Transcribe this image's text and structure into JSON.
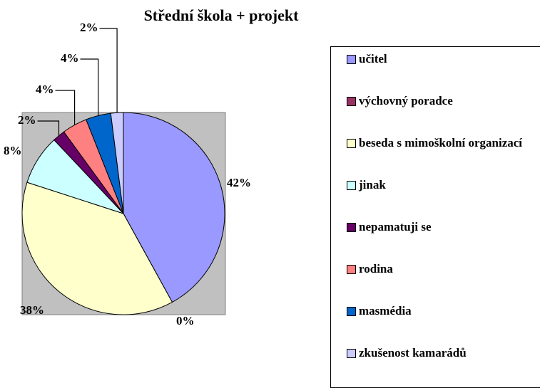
{
  "chart_data": {
    "type": "pie",
    "title": "Střední škola + projekt",
    "categories": [
      "učitel",
      "výchovný poradce",
      "beseda s mimoškolní organizací",
      "jinak",
      "nepamatuji se",
      "rodina",
      "masmédia",
      "zkušenost kamarádů"
    ],
    "values": [
      42,
      0,
      38,
      8,
      2,
      4,
      4,
      2
    ],
    "value_labels": [
      "42%",
      "0%",
      "38%",
      "8%",
      "2%",
      "4%",
      "4%",
      "2%"
    ],
    "colors": [
      "#9999ff",
      "#993366",
      "#ffffcc",
      "#ccffff",
      "#660066",
      "#ff8080",
      "#0066cc",
      "#ccccff"
    ],
    "legend": "right"
  }
}
